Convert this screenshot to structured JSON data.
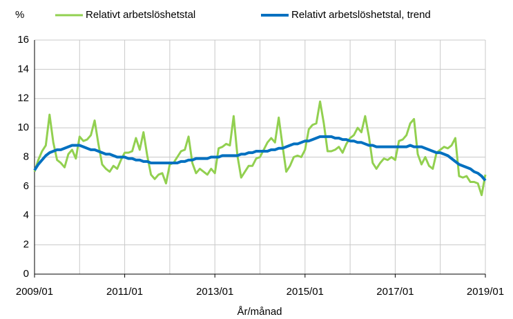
{
  "chart_data": {
    "type": "line",
    "y_unit_label": "%",
    "xlabel": "År/månad",
    "x": [
      "2009/01",
      "2009/02",
      "2009/03",
      "2009/04",
      "2009/05",
      "2009/06",
      "2009/07",
      "2009/08",
      "2009/09",
      "2009/10",
      "2009/11",
      "2009/12",
      "2010/01",
      "2010/02",
      "2010/03",
      "2010/04",
      "2010/05",
      "2010/06",
      "2010/07",
      "2010/08",
      "2010/09",
      "2010/10",
      "2010/11",
      "2010/12",
      "2011/01",
      "2011/02",
      "2011/03",
      "2011/04",
      "2011/05",
      "2011/06",
      "2011/07",
      "2011/08",
      "2011/09",
      "2011/10",
      "2011/11",
      "2011/12",
      "2012/01",
      "2012/02",
      "2012/03",
      "2012/04",
      "2012/05",
      "2012/06",
      "2012/07",
      "2012/08",
      "2012/09",
      "2012/10",
      "2012/11",
      "2012/12",
      "2013/01",
      "2013/02",
      "2013/03",
      "2013/04",
      "2013/05",
      "2013/06",
      "2013/07",
      "2013/08",
      "2013/09",
      "2013/10",
      "2013/11",
      "2013/12",
      "2014/01",
      "2014/02",
      "2014/03",
      "2014/04",
      "2014/05",
      "2014/06",
      "2014/07",
      "2014/08",
      "2014/09",
      "2014/10",
      "2014/11",
      "2014/12",
      "2015/01",
      "2015/02",
      "2015/03",
      "2015/04",
      "2015/05",
      "2015/06",
      "2015/07",
      "2015/08",
      "2015/09",
      "2015/10",
      "2015/11",
      "2015/12",
      "2016/01",
      "2016/02",
      "2016/03",
      "2016/04",
      "2016/05",
      "2016/06",
      "2016/07",
      "2016/08",
      "2016/09",
      "2016/10",
      "2016/11",
      "2016/12",
      "2017/01",
      "2017/02",
      "2017/03",
      "2017/04",
      "2017/05",
      "2017/06",
      "2017/07",
      "2017/08",
      "2017/09",
      "2017/10",
      "2017/11",
      "2017/12",
      "2018/01",
      "2018/02",
      "2018/03",
      "2018/04",
      "2018/05",
      "2018/06",
      "2018/07",
      "2018/08",
      "2018/09",
      "2018/10",
      "2018/11",
      "2018/12",
      "2019/01"
    ],
    "series": [
      {
        "name": "Relativt arbetslöshetstal",
        "color": "#92d050",
        "width": 3,
        "values": [
          7.0,
          7.8,
          8.4,
          8.8,
          10.9,
          9.0,
          7.8,
          7.6,
          7.3,
          8.2,
          8.5,
          7.9,
          9.4,
          9.1,
          9.2,
          9.5,
          10.5,
          8.9,
          7.5,
          7.2,
          7.0,
          7.4,
          7.2,
          7.8,
          8.3,
          8.3,
          8.4,
          9.3,
          8.5,
          9.7,
          8.1,
          6.8,
          6.5,
          6.8,
          6.9,
          6.2,
          7.5,
          7.6,
          8.0,
          8.4,
          8.5,
          9.4,
          7.6,
          6.9,
          7.2,
          7.0,
          6.8,
          7.2,
          6.9,
          8.6,
          8.7,
          8.9,
          8.8,
          10.8,
          8.1,
          6.6,
          7.0,
          7.4,
          7.4,
          7.9,
          8.0,
          8.5,
          9.0,
          9.3,
          9.0,
          10.7,
          8.8,
          7.0,
          7.4,
          8.0,
          8.1,
          8.0,
          8.5,
          9.9,
          10.2,
          10.3,
          11.8,
          10.3,
          8.4,
          8.4,
          8.5,
          8.7,
          8.3,
          8.9,
          9.3,
          9.5,
          10.0,
          9.7,
          10.8,
          9.4,
          7.6,
          7.2,
          7.6,
          7.9,
          7.8,
          8.0,
          7.8,
          9.1,
          9.2,
          9.5,
          10.3,
          10.6,
          8.2,
          7.5,
          8.0,
          7.4,
          7.2,
          8.3,
          8.5,
          8.7,
          8.6,
          8.8,
          9.3,
          6.7,
          6.6,
          6.7,
          6.3,
          6.3,
          6.2,
          5.4,
          6.8
        ]
      },
      {
        "name": "Relativt arbetslöshetstal, trend",
        "color": "#0070c0",
        "width": 4,
        "values": [
          7.1,
          7.5,
          7.8,
          8.1,
          8.3,
          8.4,
          8.5,
          8.5,
          8.6,
          8.7,
          8.8,
          8.8,
          8.8,
          8.7,
          8.6,
          8.5,
          8.5,
          8.4,
          8.3,
          8.2,
          8.2,
          8.1,
          8.0,
          8.0,
          8.0,
          7.9,
          7.9,
          7.8,
          7.8,
          7.7,
          7.7,
          7.6,
          7.6,
          7.6,
          7.6,
          7.6,
          7.6,
          7.6,
          7.6,
          7.7,
          7.7,
          7.8,
          7.8,
          7.9,
          7.9,
          7.9,
          7.9,
          8.0,
          8.0,
          8.0,
          8.1,
          8.1,
          8.1,
          8.1,
          8.1,
          8.2,
          8.2,
          8.3,
          8.3,
          8.4,
          8.4,
          8.4,
          8.4,
          8.5,
          8.5,
          8.6,
          8.6,
          8.7,
          8.8,
          8.9,
          8.9,
          9.0,
          9.1,
          9.1,
          9.2,
          9.3,
          9.4,
          9.4,
          9.4,
          9.4,
          9.3,
          9.3,
          9.2,
          9.2,
          9.1,
          9.1,
          9.0,
          9.0,
          8.9,
          8.8,
          8.8,
          8.7,
          8.7,
          8.7,
          8.7,
          8.7,
          8.7,
          8.7,
          8.7,
          8.7,
          8.8,
          8.7,
          8.7,
          8.7,
          8.6,
          8.5,
          8.4,
          8.3,
          8.3,
          8.2,
          8.1,
          7.9,
          7.7,
          7.5,
          7.4,
          7.3,
          7.2,
          7.0,
          6.9,
          6.7,
          6.4
        ]
      }
    ],
    "xticks": [
      "2009/01",
      "2011/01",
      "2013/01",
      "2015/01",
      "2017/01",
      "2019/01"
    ],
    "ylim": [
      0,
      16
    ],
    "yticks": [
      0,
      2,
      4,
      6,
      8,
      10,
      12,
      14,
      16
    ],
    "grid": true
  }
}
